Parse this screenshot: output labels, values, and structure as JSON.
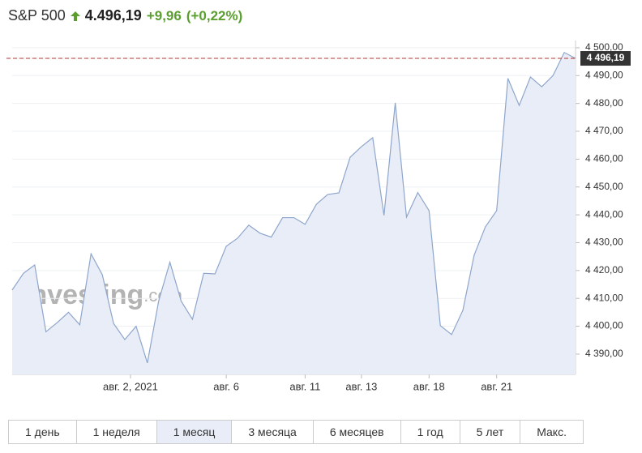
{
  "header": {
    "name": "S&P 500",
    "price": "4.496,19",
    "change": "+9,96",
    "change_pct": "(+0,22%)"
  },
  "watermark": {
    "brand": "Investing",
    "suffix": ".com"
  },
  "chart_data": {
    "type": "area",
    "x": [
      0,
      1,
      2,
      3,
      4,
      5,
      6,
      7,
      8,
      9,
      10,
      11,
      12,
      13,
      14,
      15,
      16,
      17,
      18,
      19,
      20,
      21,
      22,
      23,
      24,
      25,
      26,
      27,
      28,
      29,
      30,
      31,
      32,
      33,
      34,
      35,
      36,
      37,
      38,
      39,
      40,
      41,
      42,
      43,
      44,
      45,
      46,
      47,
      48,
      49,
      50
    ],
    "values": [
      4413,
      4419,
      4422,
      4398,
      4401.3,
      4405,
      4400.5,
      4426,
      4418.5,
      4401,
      4395.2,
      4400,
      4386.8,
      4409,
      4423,
      4409,
      4402.5,
      4419,
      4418.8,
      4428.7,
      4431.6,
      4436.3,
      4433.4,
      4432,
      4439,
      4439,
      4436.6,
      4443.8,
      4447.3,
      4447.9,
      4460.7,
      4464.5,
      4467.7,
      4439.8,
      4480.2,
      4439.2,
      4448,
      4441.5,
      4400.2,
      4397,
      4405.7,
      4425.5,
      4435.7,
      4441.5,
      4489,
      4479.3,
      4489.5,
      4486,
      4490,
      4498.3,
      4496.19
    ],
    "color": "#8ea6cb",
    "fill": "#e9edf7",
    "xlim": [
      0,
      50
    ],
    "xticks": [
      {
        "value": 10.5,
        "label": "авг. 2, 2021"
      },
      {
        "value": 19,
        "label": "авг. 6"
      },
      {
        "value": 26,
        "label": "авг. 11"
      },
      {
        "value": 31,
        "label": "авг. 13"
      },
      {
        "value": 37,
        "label": "авг. 18"
      },
      {
        "value": 43,
        "label": "авг. 21"
      }
    ],
    "ylim": [
      4382.7,
      4502.6
    ],
    "yticks": [
      {
        "value": 4390,
        "label": "4 390,00"
      },
      {
        "value": 4400,
        "label": "4 400,00"
      },
      {
        "value": 4410,
        "label": "4 410,00"
      },
      {
        "value": 4420,
        "label": "4 420,00"
      },
      {
        "value": 4430,
        "label": "4 430,00"
      },
      {
        "value": 4440,
        "label": "4 440,00"
      },
      {
        "value": 4450,
        "label": "4 450,00"
      },
      {
        "value": 4460,
        "label": "4 460,00"
      },
      {
        "value": 4470,
        "label": "4 470,00"
      },
      {
        "value": 4480,
        "label": "4 480,00"
      },
      {
        "value": 4490,
        "label": "4 490,00"
      },
      {
        "value": 4500,
        "label": "4 500,00"
      }
    ],
    "current": {
      "value": 4496.19,
      "label": "4 496,19",
      "color": "#a33"
    },
    "grid": true
  },
  "ranges": {
    "buttons": [
      "1 день",
      "1 неделя",
      "1 месяц",
      "3 месяца",
      "6 месяцев",
      "1 год",
      "5 лет",
      "Макс."
    ],
    "active": 2
  }
}
